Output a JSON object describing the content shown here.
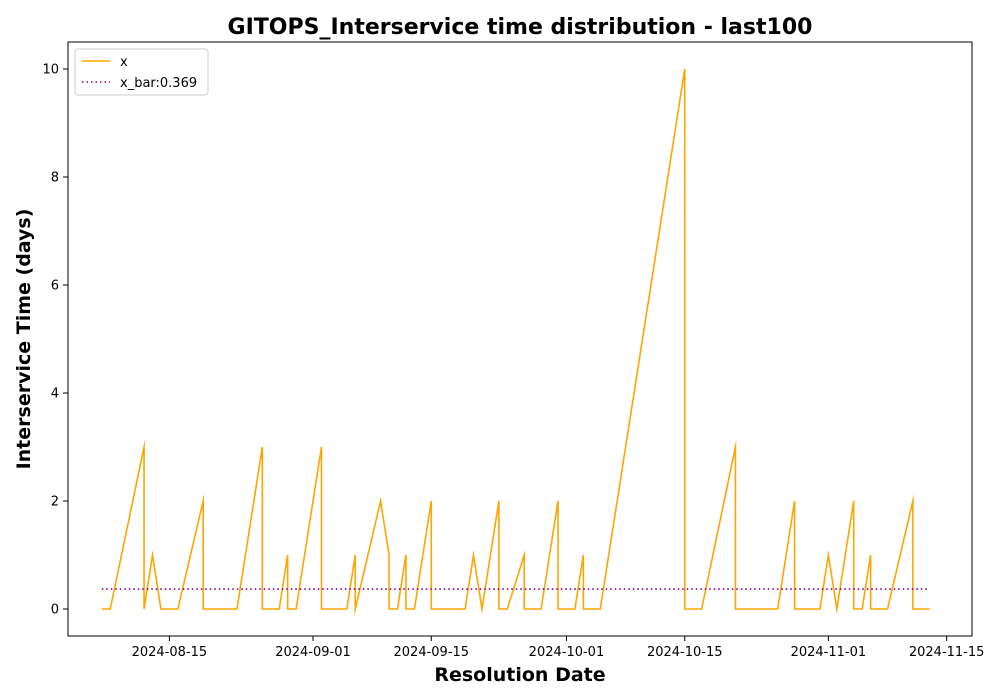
{
  "chart_data": {
    "type": "line",
    "title": "GITOPS_Interservice time distribution - last100",
    "xlabel": "Resolution Date",
    "ylabel": "Interservice Time (days)",
    "x_ticks": [
      "2024-08-15",
      "2024-09-01",
      "2024-09-15",
      "2024-10-01",
      "2024-10-15",
      "2024-11-01",
      "2024-11-15"
    ],
    "y_ticks": [
      "0",
      "2",
      "4",
      "6",
      "8",
      "10"
    ],
    "xlim": [
      "2024-08-03",
      "2024-11-18"
    ],
    "ylim": [
      -0.5,
      10.5
    ],
    "grid": false,
    "legend_position": "top-left",
    "series": [
      {
        "name": "x",
        "style": "solid",
        "color": "#FFA500",
        "points": [
          [
            "2024-08-07",
            0
          ],
          [
            "2024-08-08",
            0
          ],
          [
            "2024-08-12",
            3
          ],
          [
            "2024-08-12",
            0
          ],
          [
            "2024-08-13",
            1
          ],
          [
            "2024-08-14",
            0
          ],
          [
            "2024-08-16",
            0
          ],
          [
            "2024-08-19",
            2
          ],
          [
            "2024-08-19",
            0
          ],
          [
            "2024-08-23",
            0
          ],
          [
            "2024-08-26",
            3
          ],
          [
            "2024-08-26",
            0
          ],
          [
            "2024-08-28",
            0
          ],
          [
            "2024-08-29",
            1
          ],
          [
            "2024-08-29",
            0
          ],
          [
            "2024-08-30",
            0
          ],
          [
            "2024-09-02",
            3
          ],
          [
            "2024-09-02",
            0
          ],
          [
            "2024-09-05",
            0
          ],
          [
            "2024-09-06",
            1
          ],
          [
            "2024-09-06",
            0
          ],
          [
            "2024-09-09",
            2
          ],
          [
            "2024-09-10",
            1
          ],
          [
            "2024-09-10",
            0
          ],
          [
            "2024-09-11",
            0
          ],
          [
            "2024-09-12",
            1
          ],
          [
            "2024-09-12",
            0
          ],
          [
            "2024-09-13",
            0
          ],
          [
            "2024-09-15",
            2
          ],
          [
            "2024-09-15",
            0
          ],
          [
            "2024-09-19",
            0
          ],
          [
            "2024-09-20",
            1
          ],
          [
            "2024-09-21",
            0
          ],
          [
            "2024-09-23",
            2
          ],
          [
            "2024-09-23",
            0
          ],
          [
            "2024-09-24",
            0
          ],
          [
            "2024-09-26",
            1
          ],
          [
            "2024-09-26",
            0
          ],
          [
            "2024-09-28",
            0
          ],
          [
            "2024-09-30",
            2
          ],
          [
            "2024-09-30",
            0
          ],
          [
            "2024-10-02",
            0
          ],
          [
            "2024-10-03",
            1
          ],
          [
            "2024-10-03",
            0
          ],
          [
            "2024-10-05",
            0
          ],
          [
            "2024-10-15",
            10
          ],
          [
            "2024-10-15",
            0
          ],
          [
            "2024-10-17",
            0
          ],
          [
            "2024-10-21",
            3
          ],
          [
            "2024-10-21",
            0
          ],
          [
            "2024-10-26",
            0
          ],
          [
            "2024-10-28",
            2
          ],
          [
            "2024-10-28",
            0
          ],
          [
            "2024-10-31",
            0
          ],
          [
            "2024-11-01",
            1
          ],
          [
            "2024-11-02",
            0
          ],
          [
            "2024-11-04",
            2
          ],
          [
            "2024-11-04",
            0
          ],
          [
            "2024-11-05",
            0
          ],
          [
            "2024-11-06",
            1
          ],
          [
            "2024-11-06",
            0
          ],
          [
            "2024-11-08",
            0
          ],
          [
            "2024-11-11",
            2
          ],
          [
            "2024-11-11",
            0
          ],
          [
            "2024-11-13",
            0
          ]
        ]
      },
      {
        "name": "x_bar:0.369",
        "style": "dotted",
        "color": "#800080",
        "points": [
          [
            "2024-08-07",
            0.369
          ],
          [
            "2024-11-13",
            0.369
          ]
        ]
      }
    ]
  }
}
